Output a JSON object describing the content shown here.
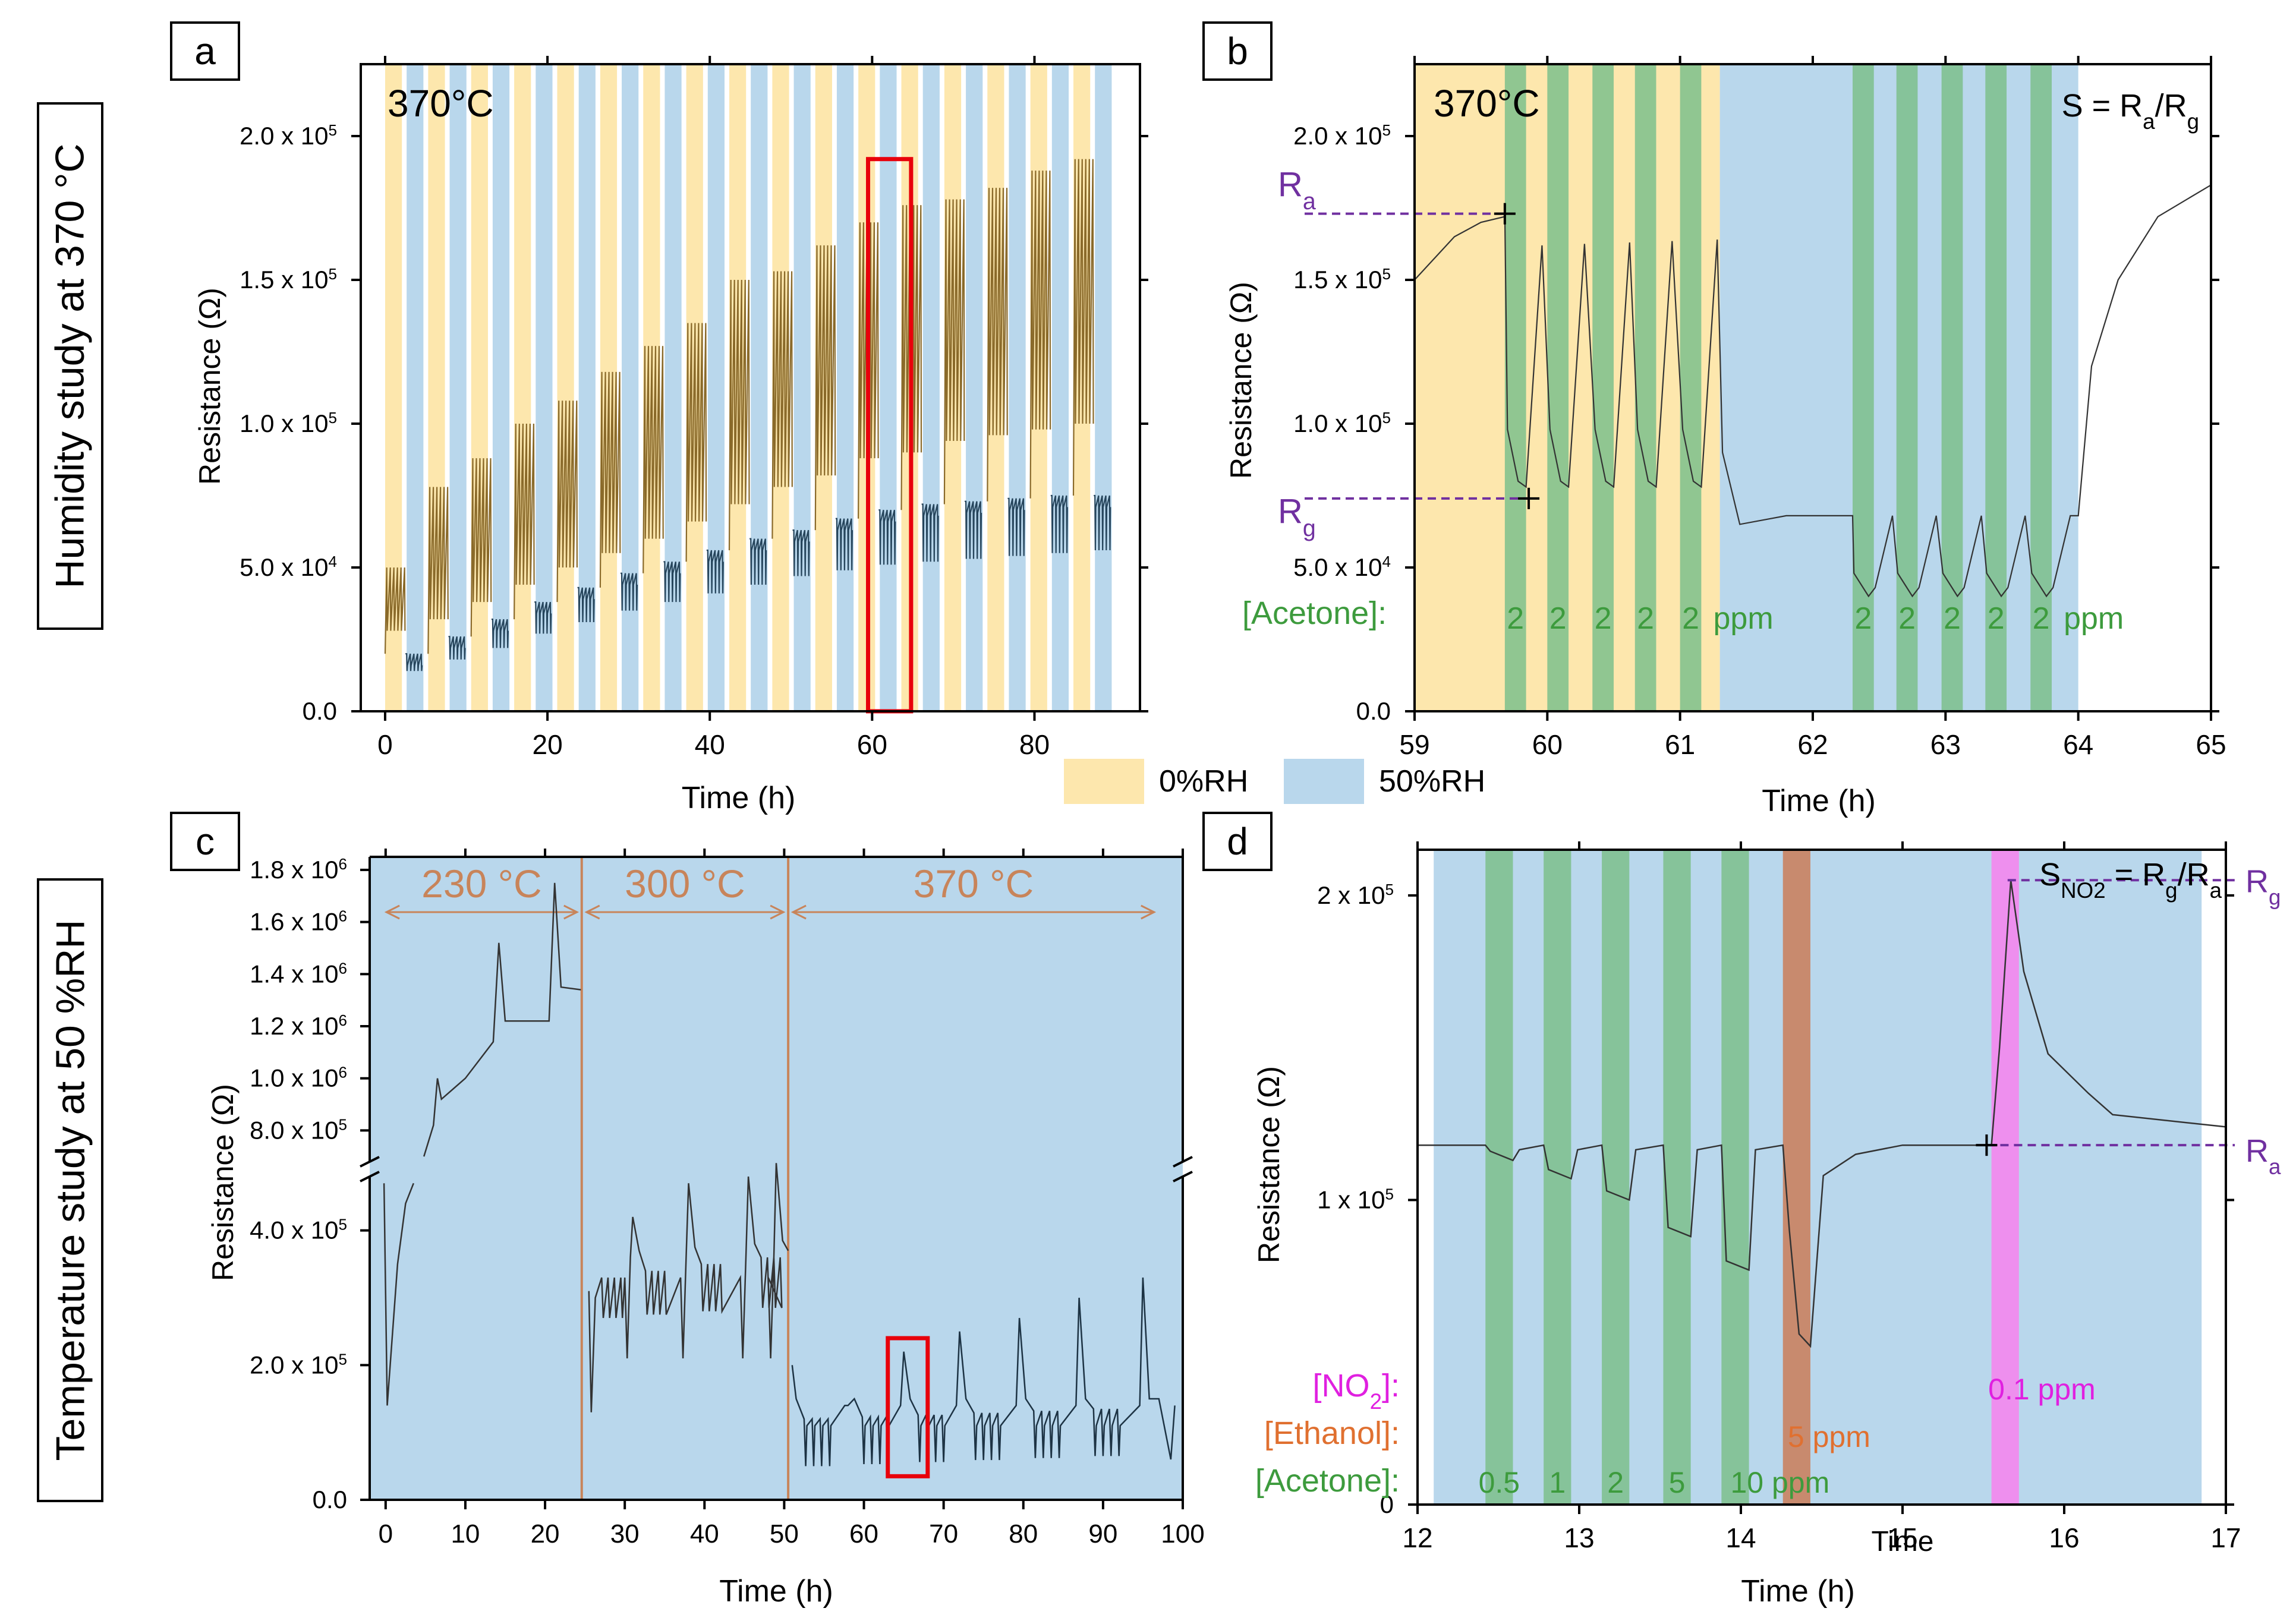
{
  "side_labels": {
    "top": "Humidity study at 370 °C",
    "bottom": "Temperature study at 50 %RH"
  },
  "panel_letters": [
    "a",
    "b",
    "c",
    "d"
  ],
  "legend": {
    "dry": "0%RH",
    "wet": "50%RH",
    "dry_color": "#fde7ad",
    "wet_color": "#b9d7ec"
  },
  "colors": {
    "acetone": "#7dbf8c",
    "ethanol": "#c88a6e",
    "no2": "#ee8fee",
    "marker": "#7030a0",
    "temp": "#c8845a",
    "highlight": "#e8000b",
    "trace_dry": "#8a6a2a",
    "trace_wet": "#26455c"
  },
  "chart_data": [
    {
      "id": "a",
      "type": "line",
      "title": "370°C",
      "xlabel": "Time (h)",
      "ylabel": "Resistance (Ω)",
      "xlim": [
        -3,
        93
      ],
      "ylim": [
        0,
        225000
      ],
      "xticks": [
        "0",
        "20",
        "40",
        "60",
        "80"
      ],
      "xtick_values": [
        0,
        20,
        40,
        60,
        80
      ],
      "yticks": [
        "0.0",
        "5.0 x 10",
        "1.0 x 10",
        "1.5 x 10",
        "2.0 x 10"
      ],
      "ytick_exponents": [
        "",
        "4",
        "5",
        "5",
        "5"
      ],
      "ytick_values": [
        0,
        50000,
        100000,
        150000,
        200000
      ],
      "humidity_period_h": 5.3,
      "dry_duration_h": 2.2,
      "cycle_count": 17,
      "dry_peak": [
        50000,
        78000,
        88000,
        100000,
        108000,
        118000,
        127000,
        135000,
        150000,
        153000,
        162000,
        170000,
        176000,
        178000,
        182000,
        188000,
        192000
      ],
      "dry_valley": [
        28000,
        32000,
        38000,
        44000,
        50000,
        55000,
        60000,
        66000,
        72000,
        78000,
        82000,
        88000,
        90000,
        94000,
        96000,
        98000,
        100000
      ],
      "wet_top": [
        20000,
        26000,
        32000,
        38000,
        43000,
        48000,
        52000,
        56000,
        60000,
        63000,
        67000,
        70000,
        72000,
        73000,
        74000,
        75000,
        75000
      ],
      "wet_bottom": [
        14000,
        18000,
        22000,
        27000,
        31000,
        35000,
        38000,
        41000,
        44000,
        47000,
        49000,
        51000,
        52000,
        53000,
        54000,
        55000,
        56000
      ],
      "highlight_box": {
        "x0": 59.5,
        "x1": 64.8,
        "y0": 0,
        "y1": 192000
      }
    },
    {
      "id": "b",
      "type": "line",
      "title": "370°C",
      "formula": "S = R",
      "formula_sub1": "a",
      "formula_sep": "/R",
      "formula_sub2": "g",
      "xlabel": "Time (h)",
      "ylabel": "Resistance (Ω)",
      "xlim": [
        59,
        65
      ],
      "ylim": [
        0,
        225000
      ],
      "xticks": [
        "59",
        "60",
        "61",
        "62",
        "63",
        "64",
        "65"
      ],
      "xtick_values": [
        59,
        60,
        61,
        62,
        63,
        64,
        65
      ],
      "yticks": [
        "0.0",
        "5.0 x 10",
        "1.0 x 10",
        "1.5 x 10",
        "2.0 x 10"
      ],
      "ytick_exponents": [
        "",
        "4",
        "5",
        "5",
        "5"
      ],
      "ytick_values": [
        0,
        50000,
        100000,
        150000,
        200000
      ],
      "dry_region": [
        59,
        61.3
      ],
      "wet_region": [
        61.3,
        64.0
      ],
      "acetone_pulses_dry": [
        59.68,
        60.0,
        60.34,
        60.66,
        61.0
      ],
      "acetone_pulses_wet": [
        62.3,
        62.63,
        62.97,
        63.3,
        63.64
      ],
      "pulse_width_h": 0.16,
      "acetone_label": "[Acetone]:",
      "conc_label": "2",
      "unit_label": "ppm",
      "ra_label": "R",
      "ra_sub": "a",
      "rg_label": "R",
      "rg_sub": "g",
      "ra_value": 173000,
      "rg_value": 74000,
      "dry_baseline": 172000,
      "dry_valley": 78000,
      "wet_baseline": 68000,
      "wet_valley": 40000,
      "final_value": 183000
    },
    {
      "id": "c",
      "type": "line",
      "xlabel": "Time (h)",
      "ylabel": "Resistance (Ω)",
      "xlim": [
        -2,
        100
      ],
      "xticks": [
        "0",
        "10",
        "20",
        "30",
        "40",
        "50",
        "60",
        "70",
        "80",
        "90",
        "100"
      ],
      "xtick_values": [
        0,
        10,
        20,
        30,
        40,
        50,
        60,
        70,
        80,
        90,
        100
      ],
      "broken_axis": {
        "lower": [
          0,
          480000
        ],
        "upper": [
          680000,
          1850000
        ]
      },
      "yticks_lower": [
        "0.0",
        "2.0 x 10",
        "4.0 x 10"
      ],
      "yticks_lower_exp": [
        "",
        "5",
        "5"
      ],
      "yticks_lower_values": [
        0,
        200000,
        400000
      ],
      "yticks_upper": [
        "8.0 x 10",
        "1.0 x 10",
        "1.2 x 10",
        "1.4 x 10",
        "1.6 x 10",
        "1.8 x 10"
      ],
      "yticks_upper_exp": [
        "5",
        "6",
        "6",
        "6",
        "6",
        "6"
      ],
      "yticks_upper_values": [
        800000,
        1000000,
        1200000,
        1400000,
        1600000,
        1800000
      ],
      "temperature_sections": [
        {
          "label": "230 °C",
          "x0": -0.5,
          "x1": 24.6
        },
        {
          "label": "300 °C",
          "x0": 24.6,
          "x1": 50.5
        },
        {
          "label": "370 °C",
          "x0": 50.5,
          "x1": 97
        }
      ],
      "peaks_230": [
        1000000,
        1520000,
        1750000
      ],
      "peaks_300": [
        420000,
        470000,
        480000,
        500000
      ],
      "peaks_370": [
        140000,
        220000,
        250000,
        270000,
        300000,
        330000
      ],
      "highlight_box": {
        "x0": 63,
        "x1": 68,
        "y0": 35000,
        "y1": 240000
      }
    },
    {
      "id": "d",
      "type": "line",
      "formula": "S",
      "formula_sub": "NO2",
      "formula_rest": " = R",
      "formula_sub1": "g",
      "formula_sep": "/R",
      "formula_sub2": "a",
      "xlabel": "Time (h)",
      "inner_xlabel": "Time",
      "ylabel": "Resistance (Ω)",
      "xlim": [
        12,
        17
      ],
      "ylim": [
        0,
        215000
      ],
      "xticks": [
        "12",
        "13",
        "14",
        "15",
        "16",
        "17"
      ],
      "xtick_values": [
        12,
        13,
        14,
        15,
        16,
        17
      ],
      "yticks": [
        "0",
        "1 x 10",
        "2 x 10"
      ],
      "ytick_exponents": [
        "",
        "5",
        "5"
      ],
      "ytick_values": [
        0,
        100000,
        200000
      ],
      "background_region": [
        12.1,
        16.85
      ],
      "acetone_pulses": [
        12.42,
        12.78,
        13.14,
        13.52,
        13.88
      ],
      "acetone_levels": [
        0.5,
        1,
        2,
        5,
        10
      ],
      "acetone_valleys": [
        113000,
        107000,
        100000,
        88000,
        77000
      ],
      "acetone_labels": [
        "0.5",
        "1",
        "2",
        "5",
        "10 ppm"
      ],
      "pulse_width_h": 0.17,
      "ethanol_pulse": 14.26,
      "ethanol_valley": 52000,
      "ethanol_label": "5 ppm",
      "no2_pulse": 15.55,
      "no2_label": "0.1 ppm",
      "no2_peak": 205000,
      "tail_value": 124000,
      "baseline": 118000,
      "no2_row": "[NO",
      "no2_row_sub": "2",
      "no2_row_end": "]:",
      "ethanol_row": "[Ethanol]:",
      "acetone_row": "[Acetone]:",
      "rg_label": "R",
      "rg_sub": "g",
      "ra_label": "R",
      "ra_sub": "a",
      "rg_value": 205000,
      "ra_value": 118000
    }
  ]
}
